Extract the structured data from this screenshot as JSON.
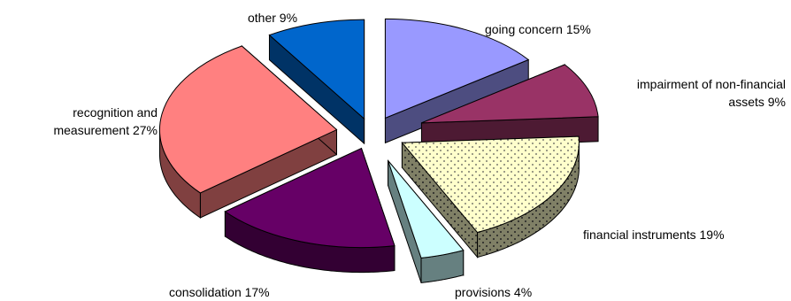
{
  "chart_data": {
    "type": "pie",
    "style": "3d-exploded",
    "slices": [
      {
        "label_lines": [
          "going concern 15%"
        ],
        "value": 15,
        "color": "#9999ff",
        "side_color": "#4d4d80"
      },
      {
        "label_lines": [
          "impairment of non-financial",
          "assets  9%"
        ],
        "value": 9,
        "color": "#993366",
        "side_color": "#4d1a33"
      },
      {
        "label_lines": [
          "financial instruments 19%"
        ],
        "value": 19,
        "color": "#ffffcc",
        "side_color": "#808066",
        "pattern": "dotted"
      },
      {
        "label_lines": [
          "provisions 4%"
        ],
        "value": 4,
        "color": "#ccffff",
        "side_color": "#668080"
      },
      {
        "label_lines": [
          "consolidation 17%"
        ],
        "value": 17,
        "color": "#660066",
        "side_color": "#330033"
      },
      {
        "label_lines": [
          "recognition and",
          "measurement  27%"
        ],
        "value": 27,
        "color": "#ff8080",
        "side_color": "#804040"
      },
      {
        "label_lines": [
          "other  9%"
        ],
        "value": 9,
        "color": "#0066cc",
        "side_color": "#003366"
      }
    ]
  }
}
